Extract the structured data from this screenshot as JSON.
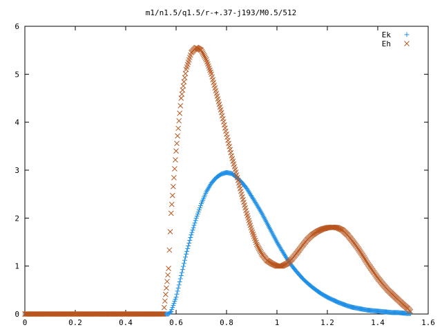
{
  "chart_data": {
    "type": "scatter",
    "title": "m1/n1.5/q1.5/r-+.37-j193/M0.5/512",
    "xlabel": "",
    "ylabel": "",
    "xlim": [
      0,
      1.6
    ],
    "ylim": [
      0,
      6
    ],
    "x_ticks": [
      "0",
      "0.2",
      "0.4",
      "0.6",
      "0.8",
      "1",
      "1.2",
      "1.4",
      "1.6"
    ],
    "y_ticks": [
      "0",
      "1",
      "2",
      "3",
      "4",
      "5",
      "6"
    ],
    "grid": false,
    "legend_position": "top-right",
    "series": [
      {
        "name": "Ek",
        "marker": "+",
        "color": "#1f8fe6",
        "points": [
          [
            0,
            0
          ],
          [
            0.1,
            0
          ],
          [
            0.2,
            0
          ],
          [
            0.3,
            0
          ],
          [
            0.4,
            0
          ],
          [
            0.5,
            0
          ],
          [
            0.57,
            0
          ],
          [
            0.58,
            0.05
          ],
          [
            0.6,
            0.35
          ],
          [
            0.62,
            0.8
          ],
          [
            0.64,
            1.25
          ],
          [
            0.66,
            1.65
          ],
          [
            0.68,
            2.0
          ],
          [
            0.7,
            2.3
          ],
          [
            0.72,
            2.55
          ],
          [
            0.74,
            2.73
          ],
          [
            0.76,
            2.85
          ],
          [
            0.78,
            2.92
          ],
          [
            0.8,
            2.95
          ],
          [
            0.82,
            2.93
          ],
          [
            0.84,
            2.85
          ],
          [
            0.86,
            2.75
          ],
          [
            0.88,
            2.62
          ],
          [
            0.9,
            2.45
          ],
          [
            0.92,
            2.28
          ],
          [
            0.94,
            2.1
          ],
          [
            0.96,
            1.9
          ],
          [
            0.98,
            1.7
          ],
          [
            1.0,
            1.5
          ],
          [
            1.02,
            1.32
          ],
          [
            1.04,
            1.15
          ],
          [
            1.06,
            1.0
          ],
          [
            1.08,
            0.87
          ],
          [
            1.1,
            0.75
          ],
          [
            1.12,
            0.65
          ],
          [
            1.14,
            0.56
          ],
          [
            1.16,
            0.48
          ],
          [
            1.18,
            0.41
          ],
          [
            1.2,
            0.35
          ],
          [
            1.22,
            0.3
          ],
          [
            1.24,
            0.25
          ],
          [
            1.26,
            0.21
          ],
          [
            1.28,
            0.17
          ],
          [
            1.3,
            0.14
          ],
          [
            1.32,
            0.12
          ],
          [
            1.34,
            0.1
          ],
          [
            1.36,
            0.08
          ],
          [
            1.38,
            0.07
          ],
          [
            1.4,
            0.06
          ],
          [
            1.42,
            0.05
          ],
          [
            1.44,
            0.04
          ],
          [
            1.46,
            0.03
          ],
          [
            1.48,
            0.03
          ],
          [
            1.5,
            0.02
          ],
          [
            1.52,
            0.01
          ],
          [
            1.53,
            0.01
          ]
        ]
      },
      {
        "name": "Eh",
        "marker": "x",
        "color": "#b8561f",
        "points": [
          [
            0,
            0
          ],
          [
            0.1,
            0
          ],
          [
            0.2,
            0
          ],
          [
            0.3,
            0
          ],
          [
            0.4,
            0
          ],
          [
            0.5,
            0
          ],
          [
            0.55,
            0
          ],
          [
            0.57,
            0.95
          ],
          [
            0.58,
            2.1
          ],
          [
            0.6,
            3.4
          ],
          [
            0.62,
            4.5
          ],
          [
            0.64,
            5.1
          ],
          [
            0.66,
            5.45
          ],
          [
            0.68,
            5.56
          ],
          [
            0.7,
            5.5
          ],
          [
            0.72,
            5.3
          ],
          [
            0.74,
            5.0
          ],
          [
            0.76,
            4.6
          ],
          [
            0.78,
            4.2
          ],
          [
            0.8,
            3.75
          ],
          [
            0.82,
            3.3
          ],
          [
            0.84,
            2.9
          ],
          [
            0.86,
            2.5
          ],
          [
            0.88,
            2.1
          ],
          [
            0.9,
            1.75
          ],
          [
            0.92,
            1.45
          ],
          [
            0.94,
            1.25
          ],
          [
            0.96,
            1.12
          ],
          [
            0.98,
            1.05
          ],
          [
            1.0,
            1.0
          ],
          [
            1.02,
            1.0
          ],
          [
            1.04,
            1.05
          ],
          [
            1.06,
            1.15
          ],
          [
            1.08,
            1.28
          ],
          [
            1.1,
            1.42
          ],
          [
            1.12,
            1.55
          ],
          [
            1.14,
            1.65
          ],
          [
            1.16,
            1.72
          ],
          [
            1.18,
            1.77
          ],
          [
            1.2,
            1.8
          ],
          [
            1.22,
            1.81
          ],
          [
            1.24,
            1.8
          ],
          [
            1.26,
            1.75
          ],
          [
            1.28,
            1.65
          ],
          [
            1.3,
            1.52
          ],
          [
            1.32,
            1.38
          ],
          [
            1.34,
            1.22
          ],
          [
            1.36,
            1.05
          ],
          [
            1.38,
            0.9
          ],
          [
            1.4,
            0.75
          ],
          [
            1.42,
            0.62
          ],
          [
            1.44,
            0.5
          ],
          [
            1.46,
            0.4
          ],
          [
            1.48,
            0.3
          ],
          [
            1.5,
            0.2
          ],
          [
            1.52,
            0.11
          ],
          [
            1.53,
            0.05
          ]
        ]
      }
    ]
  }
}
